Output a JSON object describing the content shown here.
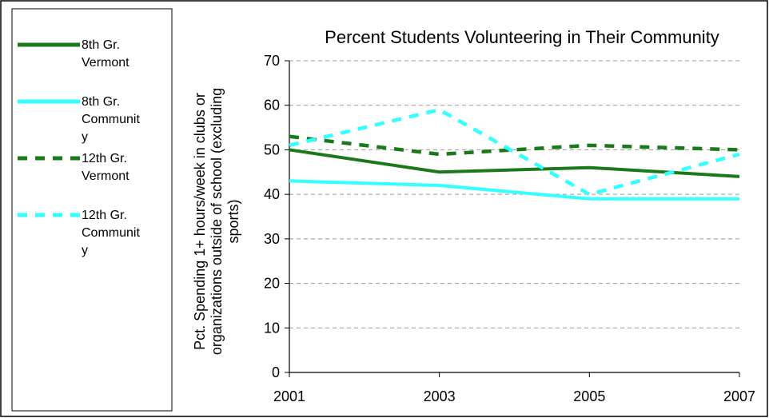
{
  "chart_data": {
    "type": "line",
    "title": "Percent Students Volunteering in Their Community",
    "ylabel_lines": [
      "Pct. Spending 1+ hours/week in clubs or",
      "organizations outside of school (excluding",
      "sports)"
    ],
    "xlabel": "",
    "categories": [
      "2001",
      "2003",
      "2005",
      "2007"
    ],
    "ylim": [
      0,
      70
    ],
    "yticks": [
      0,
      10,
      20,
      30,
      40,
      50,
      60,
      70
    ],
    "grid": "horizontal dashed",
    "legend_position": "left",
    "series": [
      {
        "name": "8th Gr. Vermont",
        "legend_lines": [
          "8th Gr.",
          "Vermont"
        ],
        "values": [
          50,
          45,
          46,
          44
        ],
        "color": "#1a7a1a",
        "style": "solid"
      },
      {
        "name": "8th Gr. Community",
        "legend_lines": [
          "8th Gr.",
          "Communit",
          "y"
        ],
        "values": [
          43,
          42,
          39,
          39
        ],
        "color": "#33ffff",
        "style": "solid"
      },
      {
        "name": "12th Gr. Vermont",
        "legend_lines": [
          "12th Gr.",
          "Vermont"
        ],
        "values": [
          53,
          49,
          51,
          50
        ],
        "color": "#1a7a1a",
        "style": "dashed"
      },
      {
        "name": "12th Gr. Community",
        "legend_lines": [
          "12th Gr.",
          "Communit",
          "y"
        ],
        "values": [
          51,
          59,
          40,
          49
        ],
        "color": "#33ffff",
        "style": "dashed"
      }
    ]
  }
}
